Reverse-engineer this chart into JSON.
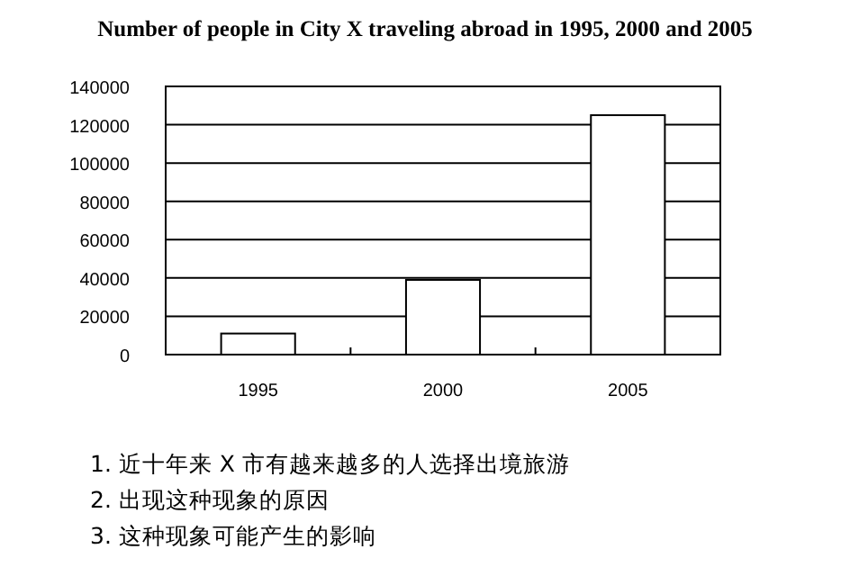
{
  "chart_data": {
    "type": "bar",
    "title": "Number of people in City X traveling abroad in 1995, 2000 and 2005",
    "categories": [
      "1995",
      "2000",
      "2005"
    ],
    "values": [
      11000,
      39000,
      125000
    ],
    "color": "#ffffff",
    "ylim": [
      0,
      140000
    ],
    "yticks": [
      0,
      20000,
      40000,
      60000,
      80000,
      100000,
      120000,
      140000
    ],
    "grid": "y",
    "annotations": [
      "1. 近十年来 X 市有越来越多的人选择出境旅游",
      "2. 出现这种现象的原因",
      "3. 这种现象可能产生的影响"
    ]
  }
}
